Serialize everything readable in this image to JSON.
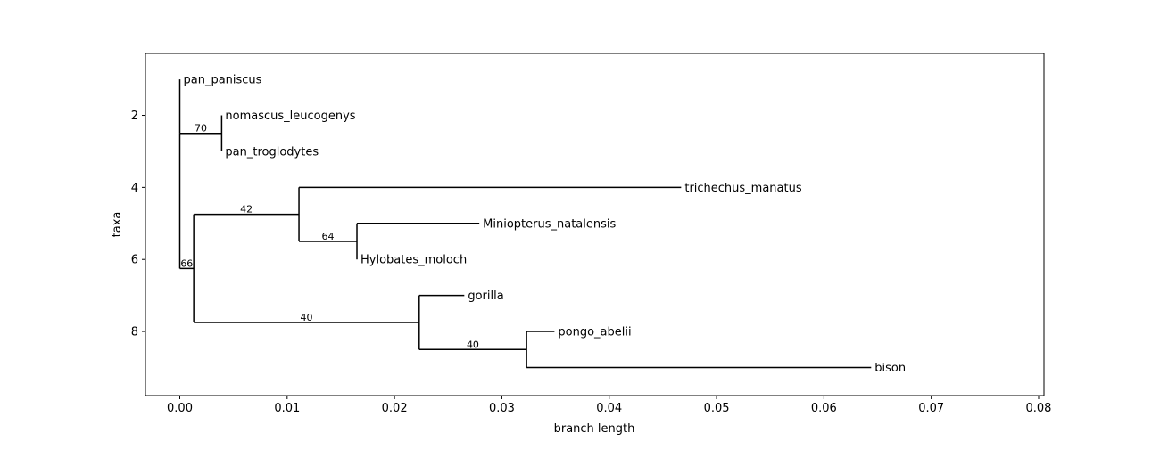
{
  "chart_data": {
    "type": "phylogenetic-tree",
    "xlabel": "branch length",
    "ylabel": "taxa",
    "xlim": [
      -0.0032,
      0.0805
    ],
    "ylim": [
      9.78,
      0.28
    ],
    "x_ticks": [
      0.0,
      0.01,
      0.02,
      0.03,
      0.04,
      0.05,
      0.06,
      0.07,
      0.08
    ],
    "x_tick_labels": [
      "0.00",
      "0.01",
      "0.02",
      "0.03",
      "0.04",
      "0.05",
      "0.06",
      "0.07",
      "0.08"
    ],
    "y_ticks": [
      2,
      4,
      6,
      8
    ],
    "y_tick_labels": [
      "2",
      "4",
      "6",
      "8"
    ],
    "taxa": [
      {
        "name": "pan_paniscus",
        "x": 0.0,
        "y": 1
      },
      {
        "name": "nomascus_leucogenys",
        "x": 0.0039,
        "y": 2
      },
      {
        "name": "pan_troglodytes",
        "x": 0.0039,
        "y": 3
      },
      {
        "name": "trichechus_manatus",
        "x": 0.0467,
        "y": 4
      },
      {
        "name": "Miniopterus_natalensis",
        "x": 0.0279,
        "y": 5
      },
      {
        "name": "Hylobates_moloch",
        "x": 0.0165,
        "y": 6
      },
      {
        "name": "gorilla",
        "x": 0.0265,
        "y": 7
      },
      {
        "name": "pongo_abelii",
        "x": 0.0349,
        "y": 8
      },
      {
        "name": "bison",
        "x": 0.0644,
        "y": 9
      }
    ],
    "internal_nodes": [
      {
        "id": "root",
        "x": 0.0,
        "y": 6.25,
        "parent_x": 0.0,
        "children_y": [
          2.5,
          6.25
        ],
        "label": ""
      },
      {
        "id": "top",
        "x": 0.0,
        "y": 2.5,
        "parent_x": 0.0,
        "children_y": [
          1,
          2.5
        ],
        "label": ""
      },
      {
        "id": "n70",
        "x": 0.0039,
        "y": 2.5,
        "parent_x": 0.0,
        "children_y": [
          2,
          3
        ],
        "label": "70"
      },
      {
        "id": "n66",
        "x": 0.0013,
        "y": 6.25,
        "parent_x": 0.0,
        "children_y": [
          4.75,
          7.75
        ],
        "label": "66"
      },
      {
        "id": "n42",
        "x": 0.0111,
        "y": 4.75,
        "parent_x": 0.0013,
        "children_y": [
          4,
          5.5
        ],
        "label": "42"
      },
      {
        "id": "n64",
        "x": 0.0165,
        "y": 5.5,
        "parent_x": 0.0111,
        "children_y": [
          5,
          6
        ],
        "label": "64"
      },
      {
        "id": "n40a",
        "x": 0.0223,
        "y": 7.75,
        "parent_x": 0.0013,
        "children_y": [
          7,
          8.5
        ],
        "label": "40"
      },
      {
        "id": "n40b",
        "x": 0.0323,
        "y": 8.5,
        "parent_x": 0.0223,
        "children_y": [
          8,
          9
        ],
        "label": "40"
      }
    ],
    "leaf_branches": [
      {
        "taxon": "pan_paniscus",
        "parent_x": 0.0
      },
      {
        "taxon": "nomascus_leucogenys",
        "parent_x": 0.0039
      },
      {
        "taxon": "pan_troglodytes",
        "parent_x": 0.0039
      },
      {
        "taxon": "trichechus_manatus",
        "parent_x": 0.0111
      },
      {
        "taxon": "Miniopterus_natalensis",
        "parent_x": 0.0165
      },
      {
        "taxon": "Hylobates_moloch",
        "parent_x": 0.0165
      },
      {
        "taxon": "gorilla",
        "parent_x": 0.0223
      },
      {
        "taxon": "pongo_abelii",
        "parent_x": 0.0323
      },
      {
        "taxon": "bison",
        "parent_x": 0.0323
      }
    ],
    "grid": false,
    "colors": {
      "line": "#000000",
      "background": "#ffffff"
    }
  }
}
